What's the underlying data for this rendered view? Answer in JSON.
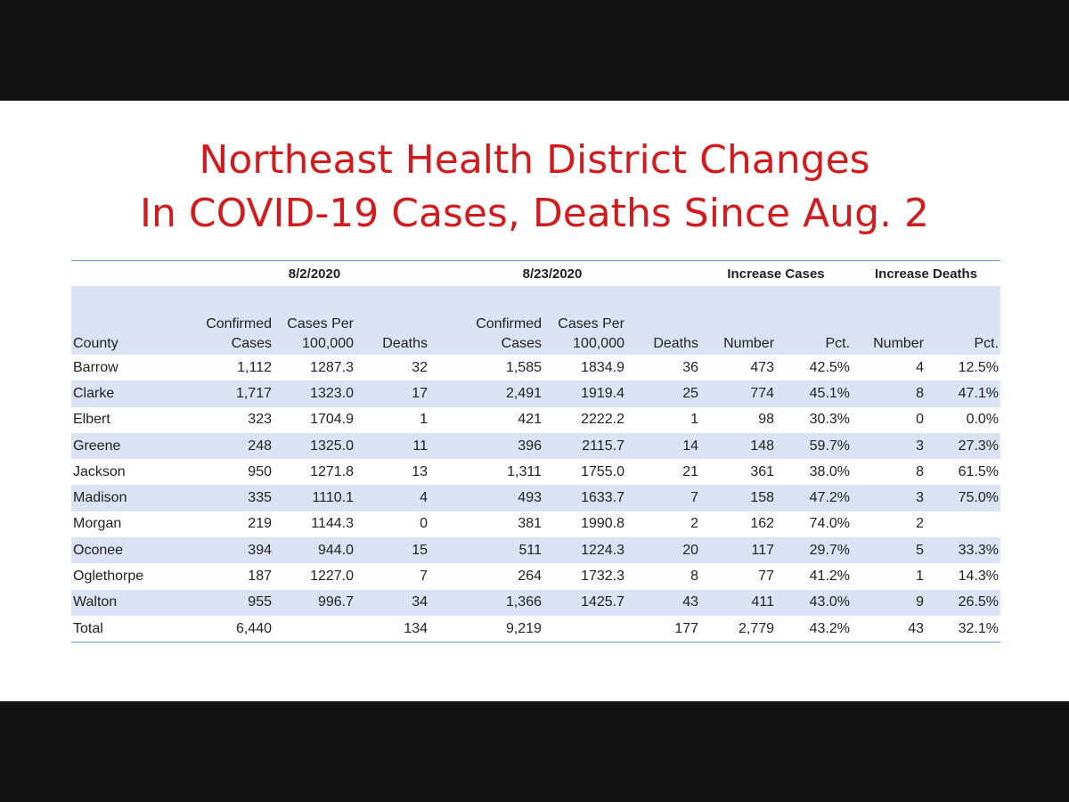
{
  "title": {
    "line1": "Northeast Health District Changes",
    "line2": "In COVID-19 Cases, Deaths Since Aug. 2"
  },
  "table": {
    "groups": {
      "g1": "8/2/2020",
      "g2": "8/23/2020",
      "g3": "Increase Cases",
      "g4": "Increase Deaths"
    },
    "headers": {
      "county": "County",
      "confirmed_l1": "Confirmed",
      "confirmed_l2": "Cases",
      "per_l1": "Cases Per",
      "per_l2": "100,000",
      "deaths": "Deaths",
      "number": "Number",
      "pct": "Pct."
    },
    "rows": [
      [
        "Barrow",
        "1,112",
        "1287.3",
        "32",
        "1,585",
        "1834.9",
        "36",
        "473",
        "42.5%",
        "4",
        "12.5%"
      ],
      [
        "Clarke",
        "1,717",
        "1323.0",
        "17",
        "2,491",
        "1919.4",
        "25",
        "774",
        "45.1%",
        "8",
        "47.1%"
      ],
      [
        "Elbert",
        "323",
        "1704.9",
        "1",
        "421",
        "2222.2",
        "1",
        "98",
        "30.3%",
        "0",
        "0.0%"
      ],
      [
        "Greene",
        "248",
        "1325.0",
        "11",
        "396",
        "2115.7",
        "14",
        "148",
        "59.7%",
        "3",
        "27.3%"
      ],
      [
        "Jackson",
        "950",
        "1271.8",
        "13",
        "1,311",
        "1755.0",
        "21",
        "361",
        "38.0%",
        "8",
        "61.5%"
      ],
      [
        "Madison",
        "335",
        "1110.1",
        "4",
        "493",
        "1633.7",
        "7",
        "158",
        "47.2%",
        "3",
        "75.0%"
      ],
      [
        "Morgan",
        "219",
        "1144.3",
        "0",
        "381",
        "1990.8",
        "2",
        "162",
        "74.0%",
        "2",
        ""
      ],
      [
        "Oconee",
        "394",
        "944.0",
        "15",
        "511",
        "1224.3",
        "20",
        "117",
        "29.7%",
        "5",
        "33.3%"
      ],
      [
        "Oglethorpe",
        "187",
        "1227.0",
        "7",
        "264",
        "1732.3",
        "8",
        "77",
        "41.2%",
        "1",
        "14.3%"
      ],
      [
        "Walton",
        "955",
        "996.7",
        "34",
        "1,366",
        "1425.7",
        "43",
        "411",
        "43.0%",
        "9",
        "26.5%"
      ],
      [
        "Total",
        "6,440",
        "",
        "134",
        "9,219",
        "",
        "177",
        "2,779",
        "43.2%",
        "43",
        "32.1%"
      ]
    ]
  },
  "colors": {
    "title": "#d01c1f",
    "band": "#dae3f3",
    "rule": "#6f9bc8",
    "letterbox": "#111111"
  }
}
